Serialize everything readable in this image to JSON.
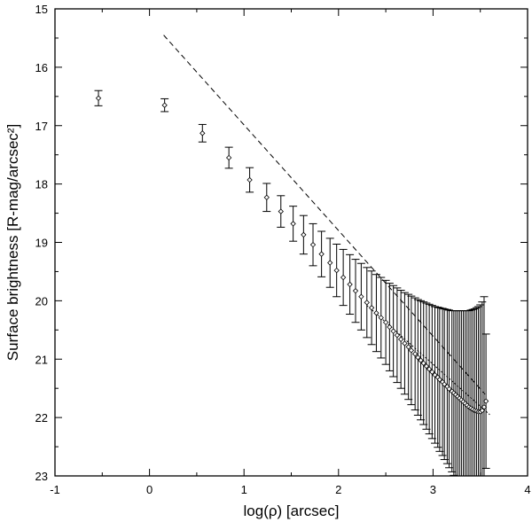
{
  "chart_data": {
    "type": "scatter",
    "title": "",
    "xlabel": "log(ρ) [arcsec]",
    "ylabel": "Surface brightness [R-mag/arcsec²]",
    "xlim": [
      -1,
      4
    ],
    "ylim": [
      15,
      23
    ],
    "y_inverted": true,
    "x_ticks": [
      "-1",
      "0",
      "1",
      "2",
      "3",
      "4"
    ],
    "y_ticks": [
      "15",
      "16",
      "17",
      "18",
      "19",
      "20",
      "21",
      "22",
      "23"
    ],
    "grid": false,
    "legend": "none",
    "points": {
      "marker": "open diamond",
      "x": [
        -0.54,
        0.16,
        0.56,
        0.84,
        1.06,
        1.24,
        1.39,
        1.52,
        1.63,
        1.73,
        1.82,
        1.91,
        1.98,
        2.05,
        2.12,
        2.18,
        2.24,
        2.3,
        2.35,
        2.4,
        2.45,
        2.5,
        2.54,
        2.58,
        2.62,
        2.66,
        2.7,
        2.74,
        2.77,
        2.81,
        2.84,
        2.87,
        2.9,
        2.93,
        2.96,
        2.99,
        3.02,
        3.05,
        3.07,
        3.1,
        3.12,
        3.15,
        3.17,
        3.2,
        3.22,
        3.24,
        3.26,
        3.28,
        3.3,
        3.32,
        3.34,
        3.36,
        3.38,
        3.4,
        3.42,
        3.44,
        3.46,
        3.48,
        3.5,
        3.52,
        3.54,
        3.56
      ],
      "y": [
        16.53,
        16.65,
        17.13,
        17.55,
        17.93,
        18.23,
        18.47,
        18.68,
        18.87,
        19.04,
        19.2,
        19.35,
        19.48,
        19.6,
        19.72,
        19.83,
        19.93,
        20.03,
        20.12,
        20.21,
        20.29,
        20.37,
        20.45,
        20.52,
        20.59,
        20.66,
        20.73,
        20.79,
        20.85,
        20.91,
        20.97,
        21.02,
        21.07,
        21.12,
        21.17,
        21.22,
        21.27,
        21.31,
        21.35,
        21.39,
        21.43,
        21.47,
        21.51,
        21.55,
        21.58,
        21.61,
        21.64,
        21.67,
        21.7,
        21.73,
        21.76,
        21.79,
        21.82,
        21.84,
        21.86,
        21.88,
        21.89,
        21.9,
        21.9,
        21.88,
        21.82,
        21.72
      ],
      "err": [
        0.13,
        0.11,
        0.15,
        0.18,
        0.21,
        0.24,
        0.27,
        0.3,
        0.33,
        0.36,
        0.39,
        0.42,
        0.45,
        0.48,
        0.51,
        0.54,
        0.57,
        0.6,
        0.63,
        0.66,
        0.69,
        0.72,
        0.75,
        0.78,
        0.81,
        0.84,
        0.87,
        0.9,
        0.93,
        0.96,
        0.99,
        1.02,
        1.05,
        1.08,
        1.11,
        1.14,
        1.17,
        1.2,
        1.23,
        1.26,
        1.29,
        1.32,
        1.35,
        1.38,
        1.41,
        1.44,
        1.47,
        1.5,
        1.53,
        1.56,
        1.59,
        1.62,
        1.65,
        1.68,
        1.71,
        1.74,
        1.77,
        1.8,
        1.83,
        1.86,
        1.89,
        1.15
      ]
    },
    "lines": [
      {
        "style": "dashed",
        "x": [
          0.15,
          3.55
        ],
        "y": [
          15.45,
          21.6
        ]
      },
      {
        "style": "dotted",
        "x": [
          2.3,
          3.6
        ],
        "y": [
          20.08,
          21.95
        ]
      }
    ]
  }
}
